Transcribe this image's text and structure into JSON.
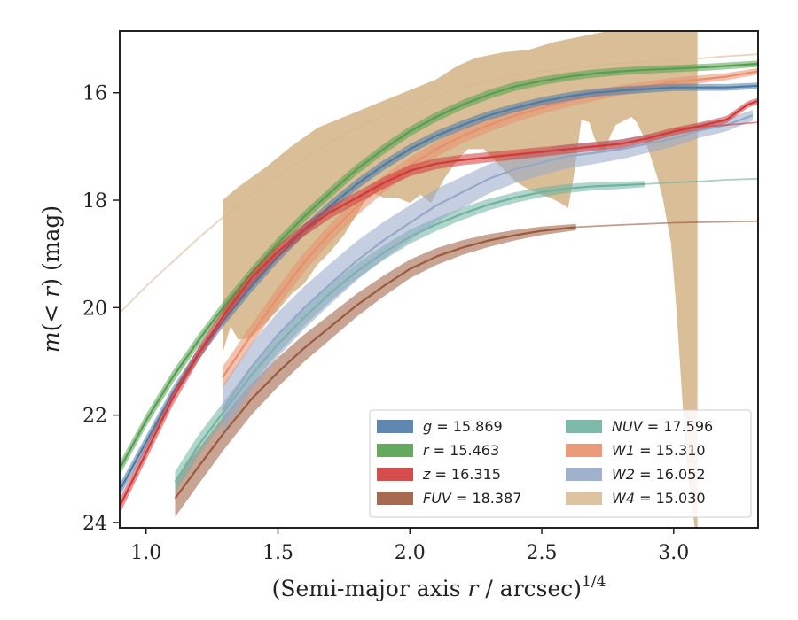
{
  "chart_data": {
    "type": "line",
    "xlabel": "(Semi-major axis r / arcsec)^{1/4}",
    "ylabel": "m(< r) (mag)",
    "xlim": [
      0.9,
      3.32
    ],
    "ylim": [
      24.1,
      14.85
    ],
    "y_inverted": true,
    "grid": false,
    "legend_position": "lower-right",
    "legend_columns": 2,
    "x_ticks": [
      "1.0",
      "1.5",
      "2.0",
      "2.5",
      "3.0"
    ],
    "y_ticks": [
      "16",
      "18",
      "20",
      "22",
      "24"
    ],
    "series": [
      {
        "name": "g",
        "legend": "g = 15.869",
        "total": 15.869,
        "color": "#4c7ba8",
        "data_x": [
          0.9,
          1.0,
          1.1,
          1.2,
          1.3,
          1.4,
          1.5,
          1.6,
          1.7,
          1.8,
          1.9,
          2.0,
          2.1,
          2.2,
          2.3,
          2.4,
          2.5,
          2.6,
          2.7,
          2.8,
          2.9,
          3.0,
          3.1,
          3.2,
          3.32
        ],
        "data_y": [
          23.4,
          22.5,
          21.6,
          20.85,
          20.2,
          19.6,
          19.05,
          18.55,
          18.1,
          17.7,
          17.35,
          17.05,
          16.8,
          16.6,
          16.42,
          16.28,
          16.16,
          16.07,
          16.0,
          15.96,
          15.93,
          15.9,
          15.9,
          15.9,
          15.87
        ],
        "ext_x": [],
        "ext_y": [],
        "band": [
          0.12,
          0.06
        ]
      },
      {
        "name": "r",
        "legend": "r = 15.463",
        "total": 15.463,
        "color": "#55a050",
        "data_x": [
          0.9,
          1.0,
          1.1,
          1.2,
          1.3,
          1.4,
          1.5,
          1.6,
          1.7,
          1.8,
          1.9,
          2.0,
          2.1,
          2.2,
          2.3,
          2.4,
          2.5,
          2.6,
          2.7,
          2.8,
          2.9,
          3.0,
          3.1,
          3.2,
          3.32
        ],
        "data_y": [
          23.0,
          22.1,
          21.3,
          20.6,
          19.95,
          19.35,
          18.8,
          18.3,
          17.85,
          17.42,
          17.05,
          16.72,
          16.45,
          16.22,
          16.03,
          15.88,
          15.78,
          15.7,
          15.64,
          15.6,
          15.57,
          15.55,
          15.53,
          15.5,
          15.46
        ],
        "ext_x": [],
        "ext_y": [],
        "band": [
          0.12,
          0.06
        ]
      },
      {
        "name": "z",
        "legend": "z = 16.315",
        "total": 16.315,
        "color": "#d03a3a",
        "data_x": [
          0.9,
          1.0,
          1.1,
          1.2,
          1.3,
          1.4,
          1.5,
          1.6,
          1.7,
          1.8,
          1.9,
          2.0,
          2.1,
          2.2,
          2.3,
          2.4,
          2.5,
          2.6,
          2.7,
          2.8,
          2.9,
          3.0,
          3.1,
          3.2,
          3.28,
          3.32
        ],
        "data_y": [
          23.7,
          22.7,
          21.7,
          20.85,
          20.1,
          19.45,
          18.95,
          18.55,
          18.22,
          17.95,
          17.68,
          17.45,
          17.32,
          17.25,
          17.2,
          17.15,
          17.1,
          17.05,
          17.0,
          16.95,
          16.85,
          16.72,
          16.62,
          16.5,
          16.22,
          16.15
        ],
        "ext_x": [
          3.0,
          3.1,
          3.2,
          3.32
        ],
        "ext_y": [
          16.67,
          16.63,
          16.6,
          16.55
        ],
        "band": [
          0.14,
          0.06
        ]
      },
      {
        "name": "FUV",
        "legend": "FUV = 18.387",
        "total": 18.387,
        "color": "#9b5a3c",
        "data_x": [
          1.11,
          1.2,
          1.3,
          1.4,
          1.5,
          1.6,
          1.7,
          1.8,
          1.9,
          2.0,
          2.1,
          2.2,
          2.3,
          2.4,
          2.5,
          2.63
        ],
        "data_y": [
          23.55,
          22.95,
          22.3,
          21.7,
          21.2,
          20.75,
          20.35,
          19.95,
          19.6,
          19.28,
          19.05,
          18.88,
          18.75,
          18.65,
          18.57,
          18.5
        ],
        "ext_x": [
          2.63,
          2.8,
          3.0,
          3.2,
          3.32
        ],
        "ext_y": [
          18.5,
          18.46,
          18.42,
          18.4,
          18.39
        ],
        "band": [
          0.35,
          0.06
        ]
      },
      {
        "name": "NUV",
        "legend": "NUV = 17.596",
        "total": 17.596,
        "color": "#6fb3a0",
        "data_x": [
          1.11,
          1.2,
          1.3,
          1.4,
          1.5,
          1.6,
          1.7,
          1.8,
          1.9,
          2.0,
          2.1,
          2.2,
          2.3,
          2.4,
          2.5,
          2.6,
          2.7,
          2.8,
          2.89
        ],
        "data_y": [
          23.25,
          22.55,
          21.9,
          21.25,
          20.68,
          20.18,
          19.72,
          19.32,
          18.98,
          18.68,
          18.45,
          18.25,
          18.08,
          17.95,
          17.85,
          17.78,
          17.74,
          17.72,
          17.7
        ],
        "ext_x": [
          2.89,
          3.0,
          3.1,
          3.2,
          3.32
        ],
        "ext_y": [
          17.7,
          17.67,
          17.65,
          17.62,
          17.6
        ],
        "band": [
          0.2,
          0.06
        ]
      },
      {
        "name": "W1",
        "legend": "W1 = 15.310",
        "total": 15.31,
        "color": "#e8906e",
        "data_x": [
          1.29,
          1.4,
          1.5,
          1.6,
          1.7,
          1.8,
          1.9,
          2.0,
          2.1,
          2.2,
          2.3,
          2.4,
          2.5,
          2.6,
          2.7,
          2.8,
          2.9,
          3.0,
          3.1,
          3.2,
          3.32
        ],
        "data_y": [
          21.3,
          20.5,
          19.8,
          19.15,
          18.6,
          18.12,
          17.7,
          17.35,
          17.05,
          16.8,
          16.6,
          16.42,
          16.28,
          16.15,
          16.05,
          15.95,
          15.88,
          15.8,
          15.75,
          15.7,
          15.6
        ],
        "ext_x": [],
        "ext_y": [],
        "band": [
          0.2,
          0.06
        ]
      },
      {
        "name": "W2",
        "legend": "W2 = 16.052",
        "total": 16.052,
        "color": "#95a8c8",
        "data_x": [
          1.29,
          1.4,
          1.5,
          1.6,
          1.7,
          1.8,
          1.9,
          2.0,
          2.1,
          2.2,
          2.3,
          2.4,
          2.5,
          2.6,
          2.7,
          2.8,
          2.9,
          3.0,
          3.1,
          3.2,
          3.3
        ],
        "data_y": [
          21.9,
          21.1,
          20.5,
          20.0,
          19.55,
          19.12,
          18.75,
          18.42,
          18.1,
          17.85,
          17.6,
          17.42,
          17.3,
          17.18,
          17.12,
          17.05,
          16.95,
          16.85,
          16.7,
          16.6,
          16.42
        ],
        "ext_x": [],
        "ext_y": [],
        "band": [
          0.45,
          0.1
        ]
      },
      {
        "name": "W4",
        "legend": "W4 = 15.030",
        "total": 15.03,
        "color": "#d7b88e",
        "curve_x": [
          0.9,
          1.0,
          1.1,
          1.2,
          1.3,
          1.4,
          1.5,
          1.6,
          1.7,
          1.8,
          1.9,
          2.0,
          2.1,
          2.2,
          2.3,
          2.4,
          2.5,
          2.6,
          2.7,
          2.8,
          2.9,
          3.0,
          3.1,
          3.2,
          3.32
        ],
        "curve_y": [
          20.1,
          19.6,
          19.15,
          18.7,
          18.28,
          17.9,
          17.55,
          17.22,
          16.92,
          16.65,
          16.42,
          16.22,
          16.05,
          15.9,
          15.78,
          15.68,
          15.6,
          15.54,
          15.49,
          15.45,
          15.42,
          15.4,
          15.36,
          15.32,
          15.28
        ],
        "band_upper_x": [
          1.29,
          1.35,
          1.45,
          1.55,
          1.65,
          1.7,
          1.8,
          1.9,
          2.0,
          2.1,
          2.18,
          2.25,
          2.35,
          2.45,
          2.55,
          2.65,
          2.75,
          2.85,
          2.95,
          3.05,
          3.09
        ],
        "band_upper_y": [
          18.0,
          17.75,
          17.4,
          17.0,
          16.65,
          16.55,
          16.35,
          16.15,
          15.95,
          15.75,
          15.5,
          15.35,
          15.25,
          15.2,
          15.05,
          14.95,
          14.85,
          14.85,
          14.85,
          14.85,
          14.85
        ],
        "band_lower_x": [
          3.09,
          3.08,
          3.05,
          3.03,
          3.01,
          2.99,
          2.96,
          2.94,
          2.92,
          2.9,
          2.88,
          2.86,
          2.84,
          2.82,
          2.8,
          2.78,
          2.76,
          2.74,
          2.72,
          2.7,
          2.68,
          2.65,
          2.62,
          2.6,
          2.57,
          2.53,
          2.5,
          2.45,
          2.4,
          2.35,
          2.28,
          2.22,
          2.18,
          2.13,
          2.08,
          2.04,
          2.0,
          1.95,
          1.9,
          1.85,
          1.8,
          1.75,
          1.7,
          1.65,
          1.6,
          1.55,
          1.5,
          1.45,
          1.4,
          1.35,
          1.32,
          1.29
        ],
        "band_lower_y": [
          24.1,
          24.1,
          23.0,
          21.5,
          20.0,
          18.8,
          18.0,
          17.6,
          17.3,
          17.0,
          16.75,
          16.55,
          16.45,
          16.5,
          16.55,
          16.6,
          16.8,
          17.1,
          17.05,
          16.85,
          16.55,
          16.5,
          17.6,
          18.15,
          18.05,
          17.95,
          17.9,
          17.8,
          17.65,
          17.4,
          17.05,
          17.05,
          17.25,
          17.6,
          18.05,
          17.9,
          18.05,
          17.95,
          17.95,
          17.85,
          18.25,
          18.65,
          18.95,
          19.2,
          19.55,
          19.75,
          20.05,
          20.3,
          20.55,
          20.6,
          20.35,
          20.85
        ]
      }
    ]
  }
}
